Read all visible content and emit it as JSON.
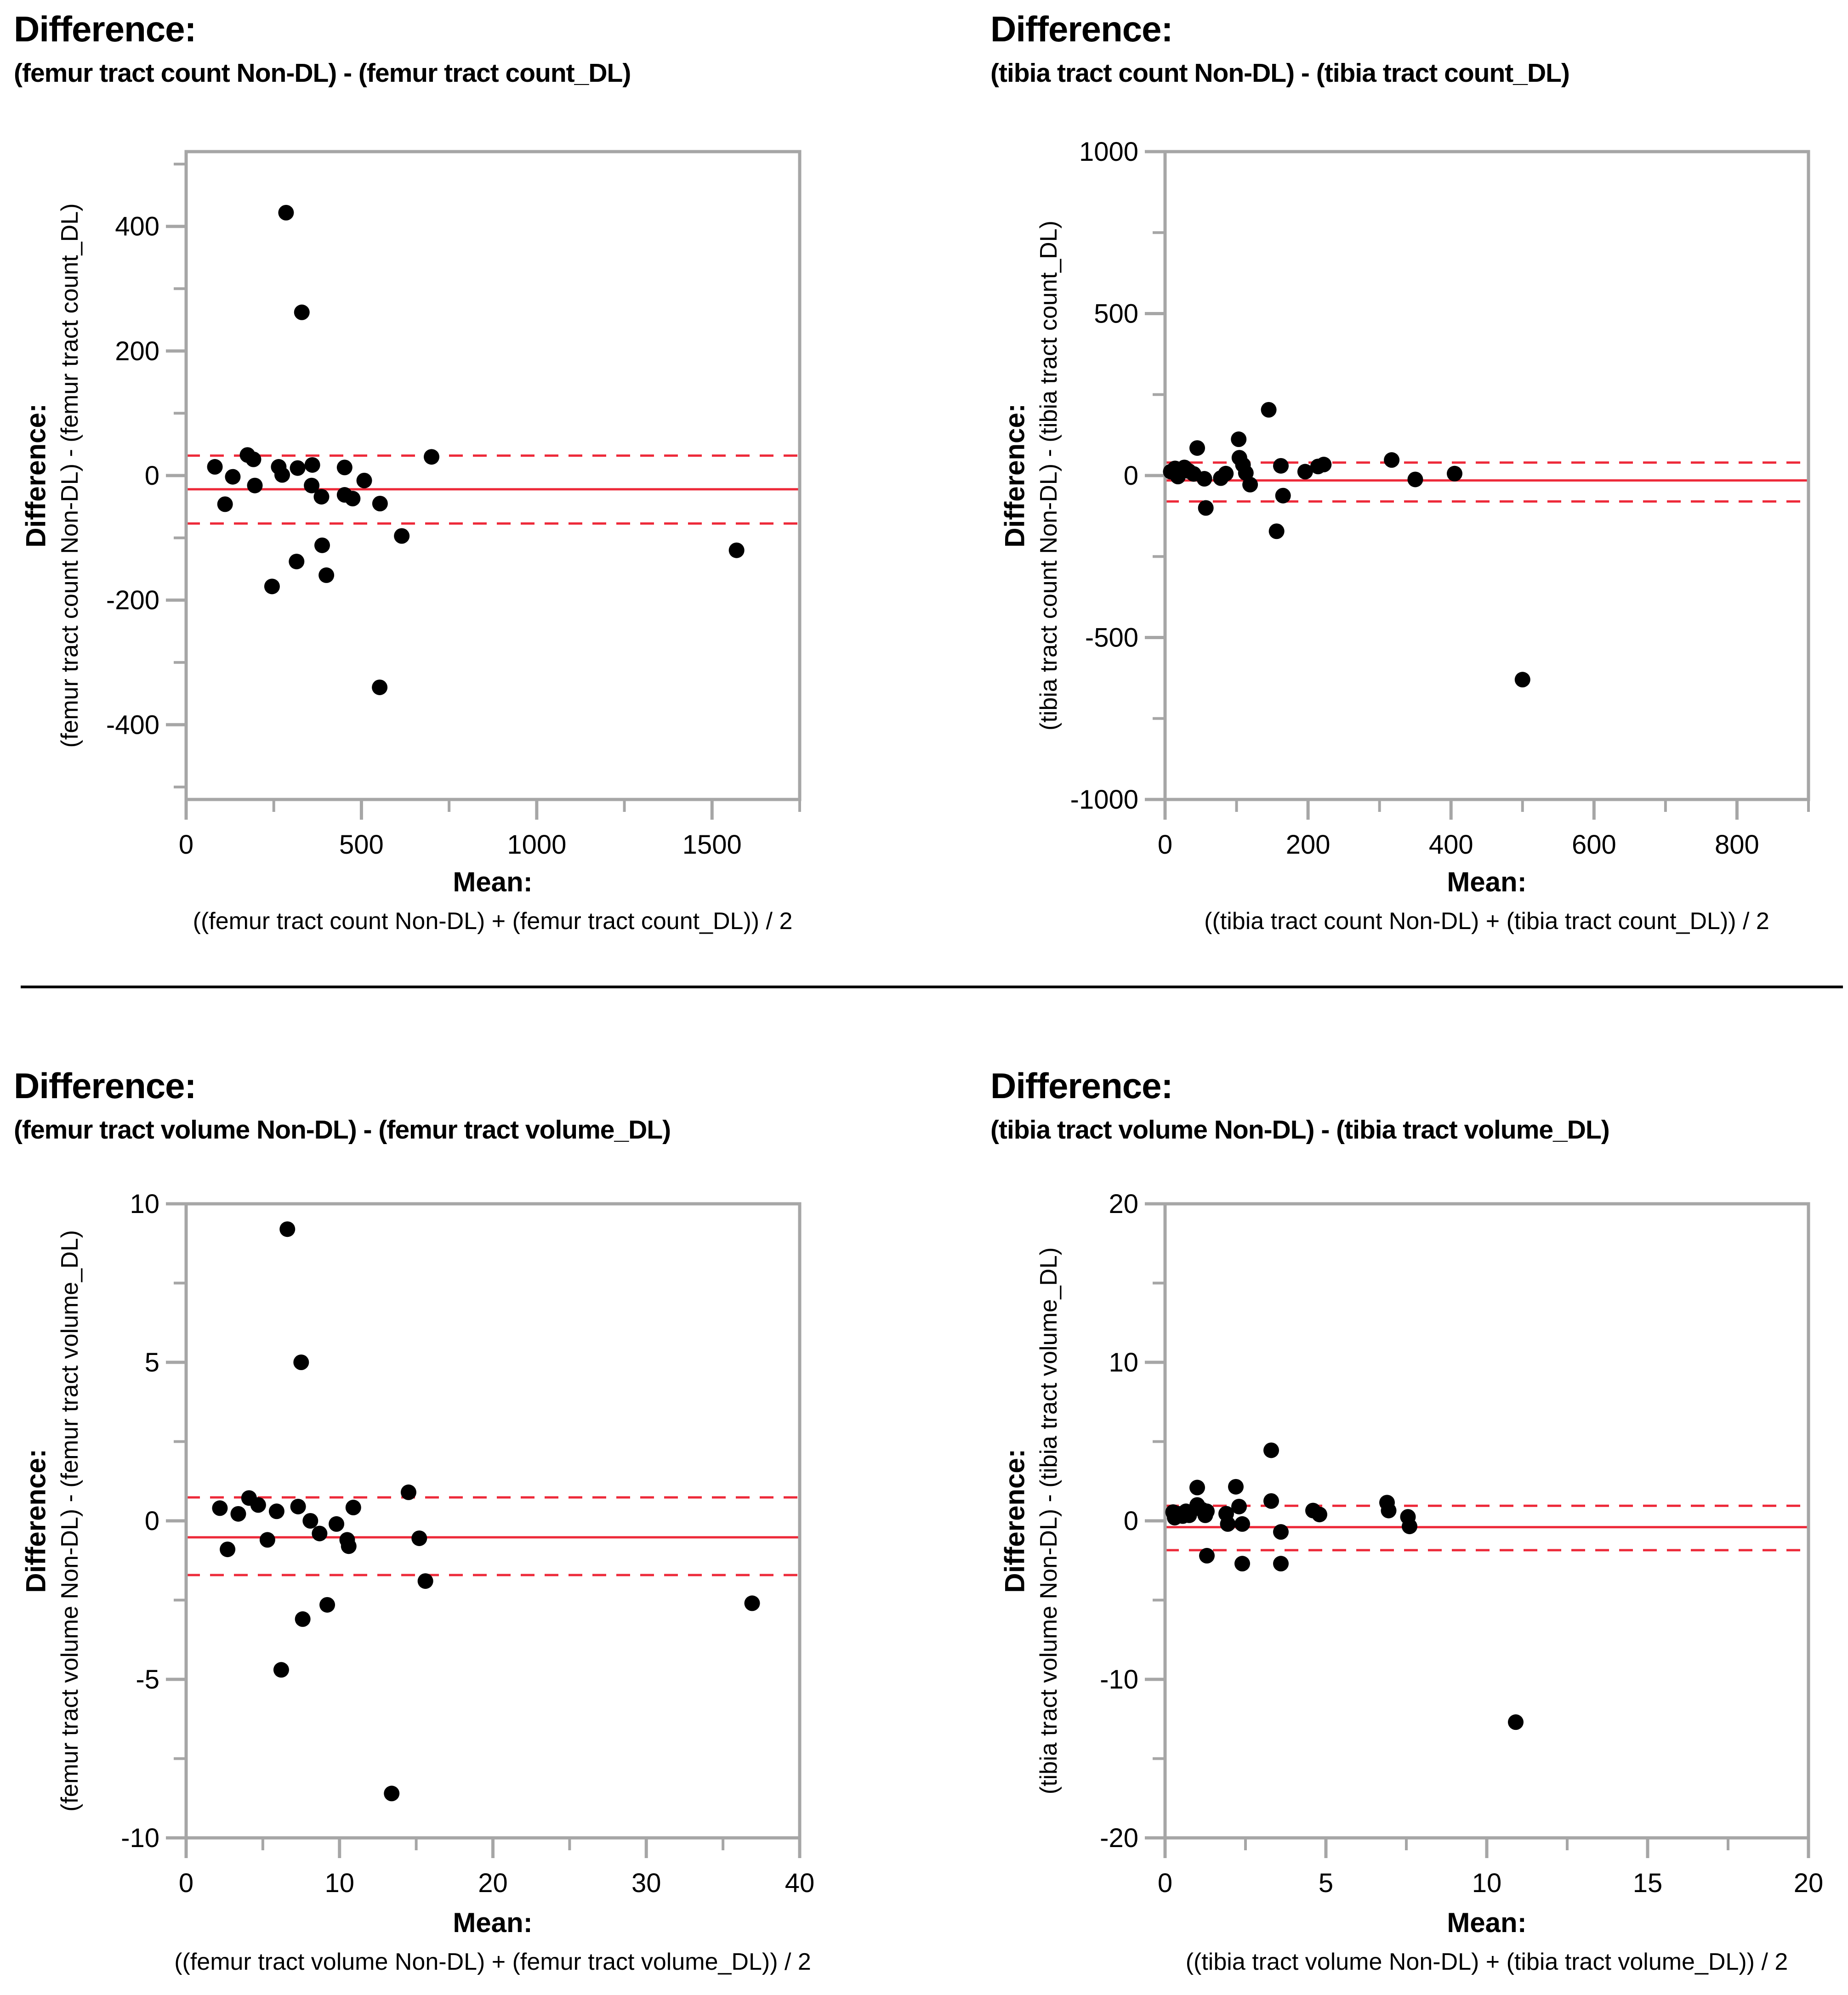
{
  "colors": {
    "point": "#000000",
    "ref_line_red": "#ED2939",
    "axis_gray": "#A6A6A6",
    "text": "#000000",
    "background": "#FFFFFF"
  },
  "chart_data": [
    {
      "type": "scatter",
      "title": "Difference:",
      "subtitle": "(femur tract count Non-DL) - (femur tract count_DL)",
      "ylabel_bold": "Difference:",
      "ylabel": "(femur tract count Non-DL) - (femur tract count_DL)",
      "xlabel_bold": "Mean:",
      "xlabel": "((femur tract count Non-DL) + (femur tract count_DL)) / 2",
      "xlim": [
        0,
        1750
      ],
      "ylim": [
        -520,
        520
      ],
      "x_major": [
        0,
        500,
        1000,
        1500
      ],
      "x_major_labels": [
        "0",
        "500",
        "1000",
        "1500"
      ],
      "x_minor": [
        250,
        750,
        1250,
        1750
      ],
      "y_major": [
        400,
        200,
        0,
        -200,
        -400
      ],
      "y_major_labels": [
        "400",
        "200",
        "0",
        "-200",
        "-400"
      ],
      "y_minor": [
        500,
        300,
        100,
        -100,
        -300,
        -500
      ],
      "mean_diff": -22,
      "loa_upper": 32,
      "loa_lower": -77,
      "grid": false,
      "legend": "none",
      "points": [
        [
          82,
          14
        ],
        [
          111,
          -46
        ],
        [
          133,
          -2
        ],
        [
          175,
          33
        ],
        [
          192,
          26
        ],
        [
          196,
          -16
        ],
        [
          245,
          -178
        ],
        [
          264,
          14
        ],
        [
          274,
          1
        ],
        [
          285,
          422
        ],
        [
          315,
          -138
        ],
        [
          318,
          12
        ],
        [
          330,
          262
        ],
        [
          358,
          -16
        ],
        [
          360,
          17
        ],
        [
          386,
          -34
        ],
        [
          388,
          -112
        ],
        [
          400,
          -160
        ],
        [
          452,
          13
        ],
        [
          452,
          -31
        ],
        [
          475,
          -37
        ],
        [
          508,
          -8
        ],
        [
          552,
          -340
        ],
        [
          553,
          -45
        ],
        [
          615,
          -97
        ],
        [
          700,
          30
        ],
        [
          1570,
          -120
        ]
      ]
    },
    {
      "type": "scatter",
      "title": "Difference:",
      "subtitle": "(tibia tract count Non-DL) - (tibia tract count_DL)",
      "ylabel_bold": "Difference:",
      "ylabel": "(tibia tract count Non-DL) - (tibia tract count_DL)",
      "xlabel_bold": "Mean:",
      "xlabel": "((tibia tract count Non-DL) + (tibia tract count_DL)) / 2",
      "xlim": [
        0,
        900
      ],
      "ylim": [
        -1000,
        1000
      ],
      "x_major": [
        0,
        200,
        400,
        600,
        800
      ],
      "x_major_labels": [
        "0",
        "200",
        "400",
        "600",
        "800"
      ],
      "x_minor": [
        100,
        300,
        500,
        700,
        900
      ],
      "y_major": [
        1000,
        500,
        0,
        -500,
        -1000
      ],
      "y_major_labels": [
        "1000",
        "500",
        "0",
        "-500",
        "-1000"
      ],
      "y_minor": [
        750,
        250,
        -250,
        -750
      ],
      "mean_diff": -15,
      "loa_upper": 40,
      "loa_lower": -80,
      "grid": false,
      "legend": "none",
      "points": [
        [
          8,
          12
        ],
        [
          14,
          22
        ],
        [
          18,
          -3
        ],
        [
          20,
          6
        ],
        [
          27,
          25
        ],
        [
          33,
          14
        ],
        [
          40,
          5
        ],
        [
          45,
          85
        ],
        [
          55,
          -10
        ],
        [
          57,
          -100
        ],
        [
          78,
          -8
        ],
        [
          85,
          6
        ],
        [
          103,
          112
        ],
        [
          104,
          55
        ],
        [
          109,
          33
        ],
        [
          113,
          8
        ],
        [
          119,
          -28
        ],
        [
          145,
          203
        ],
        [
          156,
          -172
        ],
        [
          162,
          30
        ],
        [
          165,
          -62
        ],
        [
          196,
          12
        ],
        [
          214,
          28
        ],
        [
          222,
          34
        ],
        [
          317,
          48
        ],
        [
          350,
          -12
        ],
        [
          405,
          6
        ],
        [
          500,
          -630
        ]
      ]
    },
    {
      "type": "scatter",
      "title": "Difference:",
      "subtitle": "(femur tract volume Non-DL) - (femur tract volume_DL)",
      "ylabel_bold": "Difference:",
      "ylabel": "(femur tract volume Non-DL) - (femur tract volume_DL)",
      "xlabel_bold": "Mean:",
      "xlabel": "((femur tract volume Non-DL) + (femur tract volume_DL)) / 2",
      "xlim": [
        0,
        40
      ],
      "ylim": [
        -10,
        10
      ],
      "x_major": [
        0,
        10,
        20,
        30,
        40
      ],
      "x_major_labels": [
        "0",
        "10",
        "20",
        "30",
        "40"
      ],
      "x_minor": [
        5,
        15,
        25,
        35
      ],
      "y_major": [
        10,
        5,
        0,
        -5,
        -10
      ],
      "y_major_labels": [
        "10",
        "5",
        "0",
        "-5",
        "-10"
      ],
      "y_minor": [
        7.5,
        2.5,
        -2.5,
        -7.5
      ],
      "mean_diff": -0.52,
      "loa_upper": 0.74,
      "loa_lower": -1.71,
      "grid": false,
      "legend": "none",
      "points": [
        [
          2.2,
          0.4
        ],
        [
          2.7,
          -0.9
        ],
        [
          3.4,
          0.22
        ],
        [
          4.1,
          0.72
        ],
        [
          4.7,
          0.5
        ],
        [
          5.3,
          -0.6
        ],
        [
          5.9,
          0.3
        ],
        [
          6.2,
          -4.7
        ],
        [
          6.6,
          9.2
        ],
        [
          7.3,
          0.45
        ],
        [
          7.5,
          5.0
        ],
        [
          7.6,
          -3.1
        ],
        [
          8.1,
          0.0
        ],
        [
          8.7,
          -0.4
        ],
        [
          9.2,
          -2.65
        ],
        [
          9.8,
          -0.1
        ],
        [
          10.5,
          -0.6
        ],
        [
          10.6,
          -0.8
        ],
        [
          10.9,
          0.42
        ],
        [
          13.4,
          -8.6
        ],
        [
          14.5,
          0.9
        ],
        [
          15.2,
          -0.55
        ],
        [
          15.6,
          -1.9
        ],
        [
          36.9,
          -2.6
        ]
      ]
    },
    {
      "type": "scatter",
      "title": "Difference:",
      "subtitle": "(tibia tract volume Non-DL) - (tibia tract volume_DL)",
      "ylabel_bold": "Difference:",
      "ylabel": "(tibia tract volume Non-DL) - (tibia tract volume_DL)",
      "xlabel_bold": "Mean:",
      "xlabel": "((tibia tract volume Non-DL) + (tibia tract volume_DL)) / 2",
      "xlim": [
        0,
        20
      ],
      "ylim": [
        -20,
        20
      ],
      "x_major": [
        0,
        5,
        10,
        15,
        20
      ],
      "x_major_labels": [
        "0",
        "5",
        "10",
        "15",
        "20"
      ],
      "x_minor": [
        2.5,
        7.5,
        12.5,
        17.5
      ],
      "y_major": [
        20,
        10,
        0,
        -10,
        -20
      ],
      "y_major_labels": [
        "20",
        "10",
        "0",
        "-10",
        "-20"
      ],
      "y_minor": [
        15,
        5,
        -5,
        -15
      ],
      "mean_diff": -0.4,
      "loa_upper": 0.95,
      "loa_lower": -1.85,
      "grid": false,
      "legend": "none",
      "points": [
        [
          0.25,
          0.55
        ],
        [
          0.3,
          0.2
        ],
        [
          0.4,
          0.45
        ],
        [
          0.55,
          0.3
        ],
        [
          0.65,
          0.6
        ],
        [
          0.75,
          0.35
        ],
        [
          1.0,
          2.1
        ],
        [
          1.0,
          1.0
        ],
        [
          1.15,
          0.7
        ],
        [
          1.25,
          0.35
        ],
        [
          1.3,
          0.6
        ],
        [
          1.3,
          -2.2
        ],
        [
          1.9,
          0.45
        ],
        [
          1.95,
          -0.2
        ],
        [
          2.2,
          2.15
        ],
        [
          2.3,
          0.9
        ],
        [
          2.4,
          -0.2
        ],
        [
          2.4,
          -2.7
        ],
        [
          3.3,
          4.45
        ],
        [
          3.3,
          1.25
        ],
        [
          3.6,
          -0.7
        ],
        [
          3.6,
          -2.7
        ],
        [
          4.6,
          0.65
        ],
        [
          4.8,
          0.4
        ],
        [
          6.9,
          1.15
        ],
        [
          6.95,
          0.65
        ],
        [
          7.55,
          0.25
        ],
        [
          7.6,
          -0.35
        ],
        [
          10.9,
          -12.7
        ]
      ]
    }
  ]
}
